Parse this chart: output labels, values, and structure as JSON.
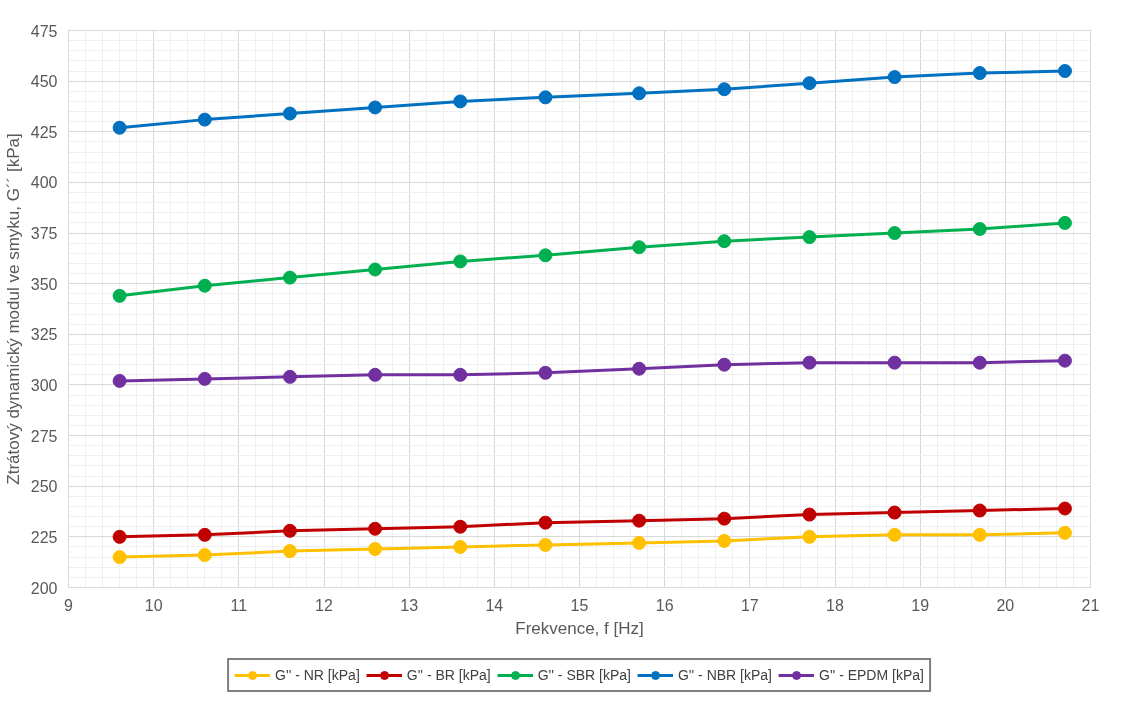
{
  "chart_data": {
    "type": "line",
    "xlabel": "Frekvence, f [Hz]",
    "ylabel": "Ztrátový dynamický modul ve smyku, G´´ [kPa]",
    "x": [
      9.6,
      10.6,
      11.6,
      12.6,
      13.6,
      14.6,
      15.7,
      16.7,
      17.7,
      18.7,
      19.7,
      20.7
    ],
    "series": [
      {
        "name": "G'' - NR [kPa]",
        "color": "#ffc000",
        "values": [
          215,
          216,
          218,
          219,
          220,
          221,
          222,
          223,
          225,
          226,
          226,
          227
        ]
      },
      {
        "name": "G'' - BR [kPa]",
        "color": "#c00000",
        "values": [
          225,
          226,
          228,
          229,
          230,
          232,
          233,
          234,
          236,
          237,
          238,
          239
        ]
      },
      {
        "name": "G'' - SBR [kPa]",
        "color": "#00b050",
        "values": [
          344,
          349,
          353,
          357,
          361,
          364,
          368,
          371,
          373,
          375,
          377,
          380
        ]
      },
      {
        "name": "G'' - NBR [kPa]",
        "color": "#0070c0",
        "values": [
          427,
          431,
          434,
          437,
          440,
          442,
          444,
          446,
          449,
          452,
          454,
          455
        ]
      },
      {
        "name": "G'' - EPDM [kPa]",
        "color": "#7030a0",
        "values": [
          302,
          303,
          304,
          305,
          305,
          306,
          308,
          310,
          311,
          311,
          311,
          312
        ]
      }
    ],
    "xlim": [
      9,
      21
    ],
    "xticks": [
      9,
      10,
      11,
      12,
      13,
      14,
      15,
      16,
      17,
      18,
      19,
      20,
      21
    ],
    "ylim": [
      200,
      475
    ],
    "yticks": [
      200,
      225,
      250,
      275,
      300,
      325,
      350,
      375,
      400,
      425,
      450,
      475
    ],
    "grid": true,
    "legend": "bottom",
    "marker": "circle",
    "line_style": "solid"
  }
}
